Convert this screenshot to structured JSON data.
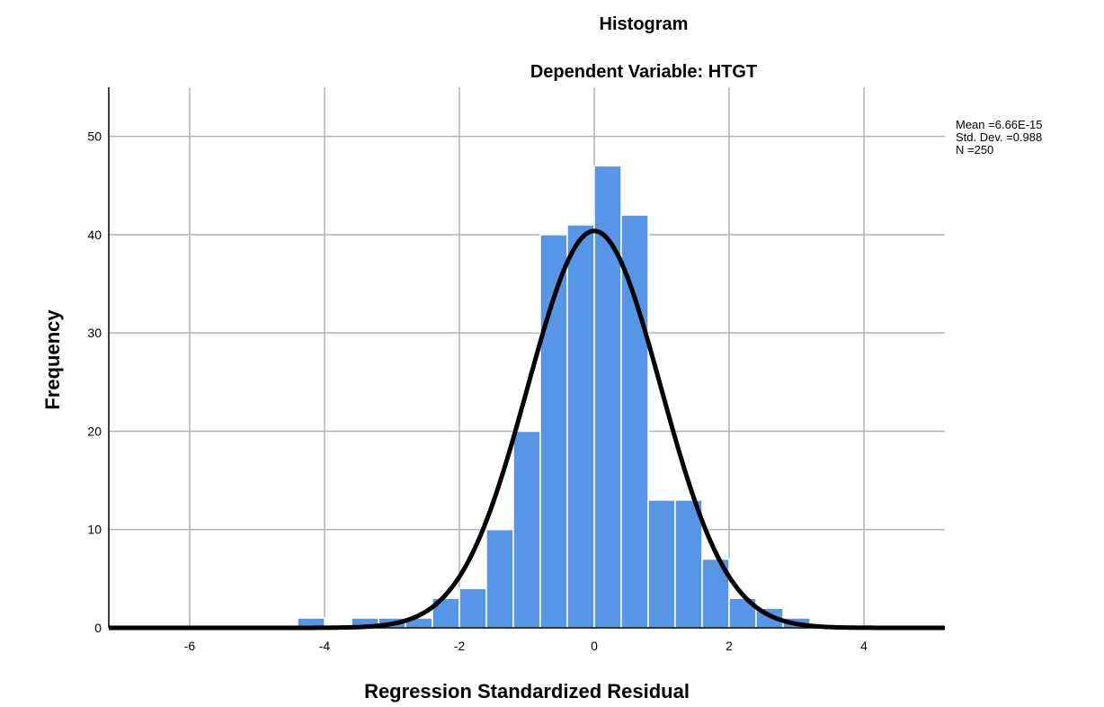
{
  "chart_data": {
    "type": "bar",
    "title": "Histogram",
    "subtitle": "Dependent Variable: HTGT",
    "xlabel": "Regression Standardized Residual",
    "ylabel": "Frequency",
    "xlim": [
      -7.2,
      5.2
    ],
    "ylim": [
      0,
      55
    ],
    "x_ticks": [
      -6,
      -4,
      -2,
      0,
      2,
      4
    ],
    "y_ticks": [
      0,
      10,
      20,
      30,
      40,
      50
    ],
    "grid": true,
    "bin_width": 0.4,
    "bins": [
      {
        "x0": -4.4,
        "x1": -4.0,
        "count": 1
      },
      {
        "x0": -4.0,
        "x1": -3.6,
        "count": 0
      },
      {
        "x0": -3.6,
        "x1": -3.2,
        "count": 1
      },
      {
        "x0": -3.2,
        "x1": -2.8,
        "count": 1
      },
      {
        "x0": -2.8,
        "x1": -2.4,
        "count": 1
      },
      {
        "x0": -2.4,
        "x1": -2.0,
        "count": 3
      },
      {
        "x0": -2.0,
        "x1": -1.6,
        "count": 4
      },
      {
        "x0": -1.6,
        "x1": -1.2,
        "count": 10
      },
      {
        "x0": -1.2,
        "x1": -0.8,
        "count": 20
      },
      {
        "x0": -0.8,
        "x1": -0.4,
        "count": 40
      },
      {
        "x0": -0.4,
        "x1": 0.0,
        "count": 41
      },
      {
        "x0": 0.0,
        "x1": 0.4,
        "count": 47
      },
      {
        "x0": 0.4,
        "x1": 0.8,
        "count": 42
      },
      {
        "x0": 0.8,
        "x1": 1.2,
        "count": 13
      },
      {
        "x0": 1.2,
        "x1": 1.6,
        "count": 13
      },
      {
        "x0": 1.6,
        "x1": 2.0,
        "count": 7
      },
      {
        "x0": 2.0,
        "x1": 2.4,
        "count": 3
      },
      {
        "x0": 2.4,
        "x1": 2.8,
        "count": 2
      },
      {
        "x0": 2.8,
        "x1": 3.2,
        "count": 1
      }
    ],
    "normal_curve": {
      "mean": 0,
      "std": 0.988,
      "n": 250
    },
    "stats_text": [
      "Mean =6.66E-15",
      "Std. Dev. =0.988",
      "N =250"
    ],
    "colors": {
      "bar": "#5796e6",
      "bar_edge": "#ffffff",
      "curve": "#000000",
      "grid": "#b4b4b4"
    }
  }
}
